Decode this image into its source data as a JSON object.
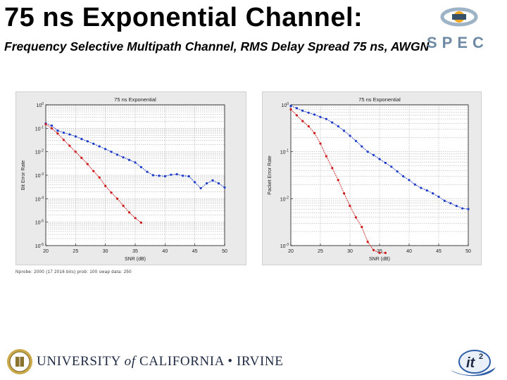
{
  "slide": {
    "title": "75 ns Exponential Channel:",
    "subtitle": "Frequency Selective Multipath Channel, RMS Delay Spread 75 ns, AWGN",
    "footnote": "Nprobe: 2000 (17 2016 bits) prob: 100 swap data: 250",
    "footer": {
      "university_part1": "UNIVERSITY",
      "university_of": "of",
      "university_part2": "CALIFORNIA • IRVINE",
      "partner_logo_text": "it",
      "partner_logo_sup": "2"
    },
    "header_logo_text": "SPEC"
  },
  "chart_data": [
    {
      "type": "line",
      "title": "75 ns Exponential",
      "xlabel": "SNR (dB)",
      "ylabel": "Bit Error Rate",
      "xlim": [
        20,
        50
      ],
      "ylim_exp": [
        -6,
        0
      ],
      "log_y": true,
      "grid": true,
      "xticks": [
        20,
        25,
        30,
        35,
        40,
        45,
        50
      ],
      "yticks_exp": [
        0,
        -1,
        -2,
        -3,
        -4,
        -5,
        -6
      ],
      "series": [
        {
          "color": "#1f3cc8",
          "x": [
            20,
            21,
            22,
            23,
            24,
            25,
            26,
            27,
            28,
            29,
            30,
            31,
            32,
            33,
            34,
            35,
            36,
            37,
            38,
            39,
            40,
            41,
            42,
            43,
            44,
            45,
            46,
            47,
            48,
            49,
            50
          ],
          "y": [
            0.16,
            0.13,
            0.08,
            0.065,
            0.055,
            0.045,
            0.035,
            0.028,
            0.022,
            0.017,
            0.013,
            0.01,
            0.0075,
            0.0058,
            0.0045,
            0.0035,
            0.0022,
            0.0014,
            0.001,
            0.00095,
            0.0009,
            0.00105,
            0.0011,
            0.00095,
            0.0009,
            0.0005,
            0.00028,
            0.00045,
            0.0006,
            0.00045,
            0.0003
          ]
        },
        {
          "color": "#cc1a1a",
          "x": [
            20,
            21,
            22,
            23,
            24,
            25,
            26,
            27,
            28,
            29,
            30,
            31,
            32,
            33,
            34,
            35,
            36
          ],
          "y": [
            0.15,
            0.1,
            0.06,
            0.032,
            0.018,
            0.01,
            0.0055,
            0.003,
            0.0015,
            0.0008,
            0.00035,
            0.00018,
            0.0001,
            5e-05,
            2.6e-05,
            1.5e-05,
            9.5e-06
          ]
        }
      ]
    },
    {
      "type": "line",
      "title": "75 ns Exponential",
      "xlabel": "SNR (dB)",
      "ylabel": "Packet Error Rate",
      "xlim": [
        20,
        50
      ],
      "ylim_exp": [
        -3,
        0
      ],
      "log_y": true,
      "grid": true,
      "xticks": [
        20,
        25,
        30,
        35,
        40,
        45,
        50
      ],
      "yticks_exp": [
        0,
        -1,
        -2,
        -3
      ],
      "series": [
        {
          "color": "#1f3cc8",
          "x": [
            20,
            21,
            22,
            23,
            24,
            25,
            26,
            27,
            28,
            29,
            30,
            31,
            32,
            33,
            34,
            35,
            36,
            37,
            38,
            39,
            40,
            41,
            42,
            43,
            44,
            45,
            46,
            47,
            48,
            49,
            50
          ],
          "y": [
            0.95,
            0.85,
            0.75,
            0.68,
            0.62,
            0.55,
            0.5,
            0.42,
            0.35,
            0.28,
            0.22,
            0.17,
            0.13,
            0.1,
            0.085,
            0.07,
            0.058,
            0.048,
            0.038,
            0.03,
            0.025,
            0.02,
            0.017,
            0.015,
            0.013,
            0.011,
            0.009,
            0.008,
            0.007,
            0.0062,
            0.006
          ]
        },
        {
          "color": "#cc1a1a",
          "x": [
            20,
            21,
            22,
            23,
            24,
            25,
            26,
            27,
            28,
            29,
            30,
            31,
            32,
            33,
            34,
            35,
            36
          ],
          "y": [
            0.8,
            0.6,
            0.45,
            0.35,
            0.25,
            0.15,
            0.08,
            0.045,
            0.025,
            0.013,
            0.007,
            0.004,
            0.0025,
            0.0012,
            0.0008,
            0.0007,
            0.0007
          ]
        }
      ]
    }
  ]
}
